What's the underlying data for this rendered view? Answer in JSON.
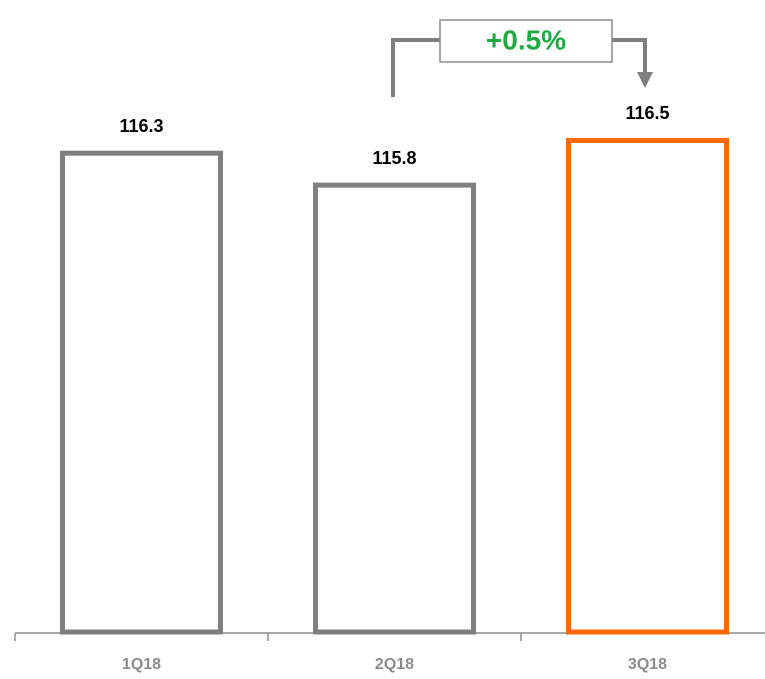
{
  "chart_data": {
    "type": "bar",
    "categories": [
      "1Q18",
      "2Q18",
      "3Q18"
    ],
    "values": [
      116.3,
      115.8,
      116.5
    ],
    "colors": [
      "#7f7f7f",
      "#7f7f7f",
      "#ff6a00"
    ],
    "ylim": [
      108.8,
      118.7
    ],
    "annotation": "+0.5%"
  }
}
